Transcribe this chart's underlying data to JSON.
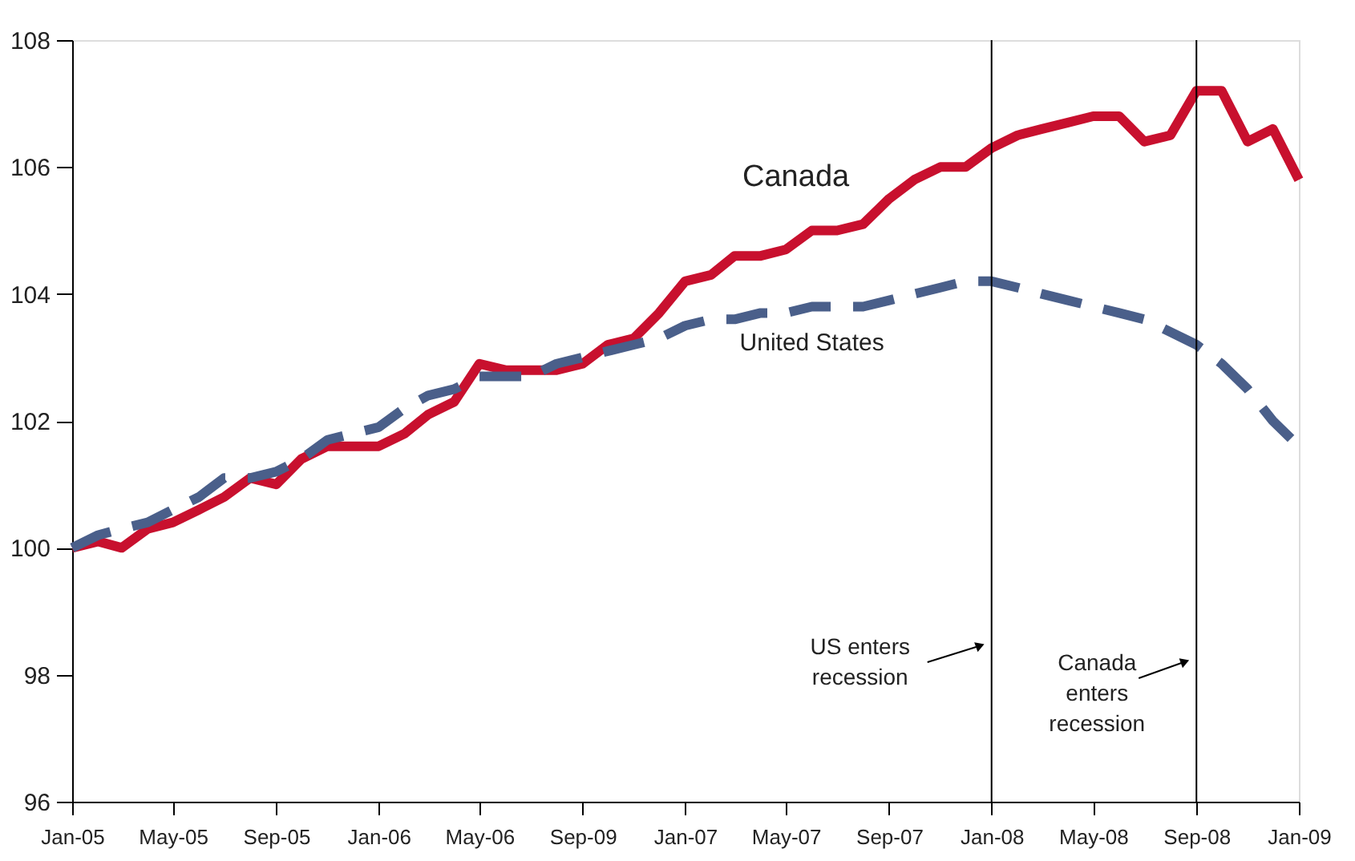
{
  "chart_data": {
    "type": "line",
    "x": [
      "2005-01",
      "2005-02",
      "2005-03",
      "2005-04",
      "2005-05",
      "2005-06",
      "2005-07",
      "2005-08",
      "2005-09",
      "2005-10",
      "2005-11",
      "2005-12",
      "2006-01",
      "2006-02",
      "2006-03",
      "2006-04",
      "2006-05",
      "2006-06",
      "2006-07",
      "2006-08",
      "2006-09",
      "2006-10",
      "2006-11",
      "2006-12",
      "2007-01",
      "2007-02",
      "2007-03",
      "2007-04",
      "2007-05",
      "2007-06",
      "2007-07",
      "2007-08",
      "2007-09",
      "2007-10",
      "2007-11",
      "2007-12",
      "2008-01",
      "2008-02",
      "2008-03",
      "2008-04",
      "2008-05",
      "2008-06",
      "2008-07",
      "2008-08",
      "2008-09",
      "2008-10",
      "2008-11",
      "2008-12",
      "2009-01"
    ],
    "series": [
      {
        "name": "Canada",
        "color": "#c8102e",
        "line_style": "solid",
        "values": [
          100.0,
          100.1,
          100.0,
          100.3,
          100.4,
          100.6,
          100.8,
          101.1,
          101.0,
          101.4,
          101.6,
          101.6,
          101.6,
          101.8,
          102.1,
          102.3,
          102.9,
          102.8,
          102.8,
          102.8,
          102.9,
          103.2,
          103.3,
          103.7,
          104.2,
          104.3,
          104.6,
          104.6,
          104.7,
          105.0,
          105.0,
          105.1,
          105.5,
          105.8,
          106.0,
          106.0,
          106.3,
          106.5,
          106.6,
          106.7,
          106.8,
          106.8,
          106.4,
          106.5,
          107.2,
          107.2,
          106.4,
          106.6,
          105.8
        ]
      },
      {
        "name": "United States",
        "color": "#4a5f8a",
        "line_style": "dashed",
        "values": [
          100.0,
          100.2,
          100.3,
          100.4,
          100.6,
          100.8,
          101.1,
          101.1,
          101.2,
          101.4,
          101.7,
          101.8,
          101.9,
          102.2,
          102.4,
          102.5,
          102.7,
          102.7,
          102.7,
          102.9,
          103.0,
          103.1,
          103.2,
          103.3,
          103.5,
          103.6,
          103.6,
          103.7,
          103.7,
          103.8,
          103.8,
          103.8,
          103.9,
          104.0,
          104.1,
          104.2,
          104.2,
          104.1,
          104.0,
          103.9,
          103.8,
          103.7,
          103.6,
          103.4,
          103.2,
          102.9,
          102.5,
          102.0,
          101.6
        ]
      }
    ],
    "xlim": [
      "2005-01",
      "2009-01"
    ],
    "xticks": [
      {
        "value": "2005-01",
        "label": "Jan-05"
      },
      {
        "value": "2005-05",
        "label": "May-05"
      },
      {
        "value": "2005-09",
        "label": "Sep-05"
      },
      {
        "value": "2006-01",
        "label": "Jan-06"
      },
      {
        "value": "2006-05",
        "label": "May-06"
      },
      {
        "value": "2006-09",
        "label": "Sep-09"
      },
      {
        "value": "2007-01",
        "label": "Jan-07"
      },
      {
        "value": "2007-05",
        "label": "May-07"
      },
      {
        "value": "2007-09",
        "label": "Sep-07"
      },
      {
        "value": "2008-01",
        "label": "Jan-08"
      },
      {
        "value": "2008-05",
        "label": "May-08"
      },
      {
        "value": "2008-09",
        "label": "Sep-08"
      },
      {
        "value": "2009-01",
        "label": "Jan-09"
      }
    ],
    "ylim": [
      96,
      108
    ],
    "yticks": [
      96,
      98,
      100,
      102,
      104,
      106,
      108
    ],
    "ref_lines": [
      {
        "axis": "x",
        "value": "2008-01",
        "color": "#000000"
      },
      {
        "axis": "x",
        "value": "2008-09",
        "color": "#000000"
      }
    ],
    "annotations": [
      "US enters\nrecession",
      "Canada\nenters\nrecession"
    ],
    "grid": false
  }
}
